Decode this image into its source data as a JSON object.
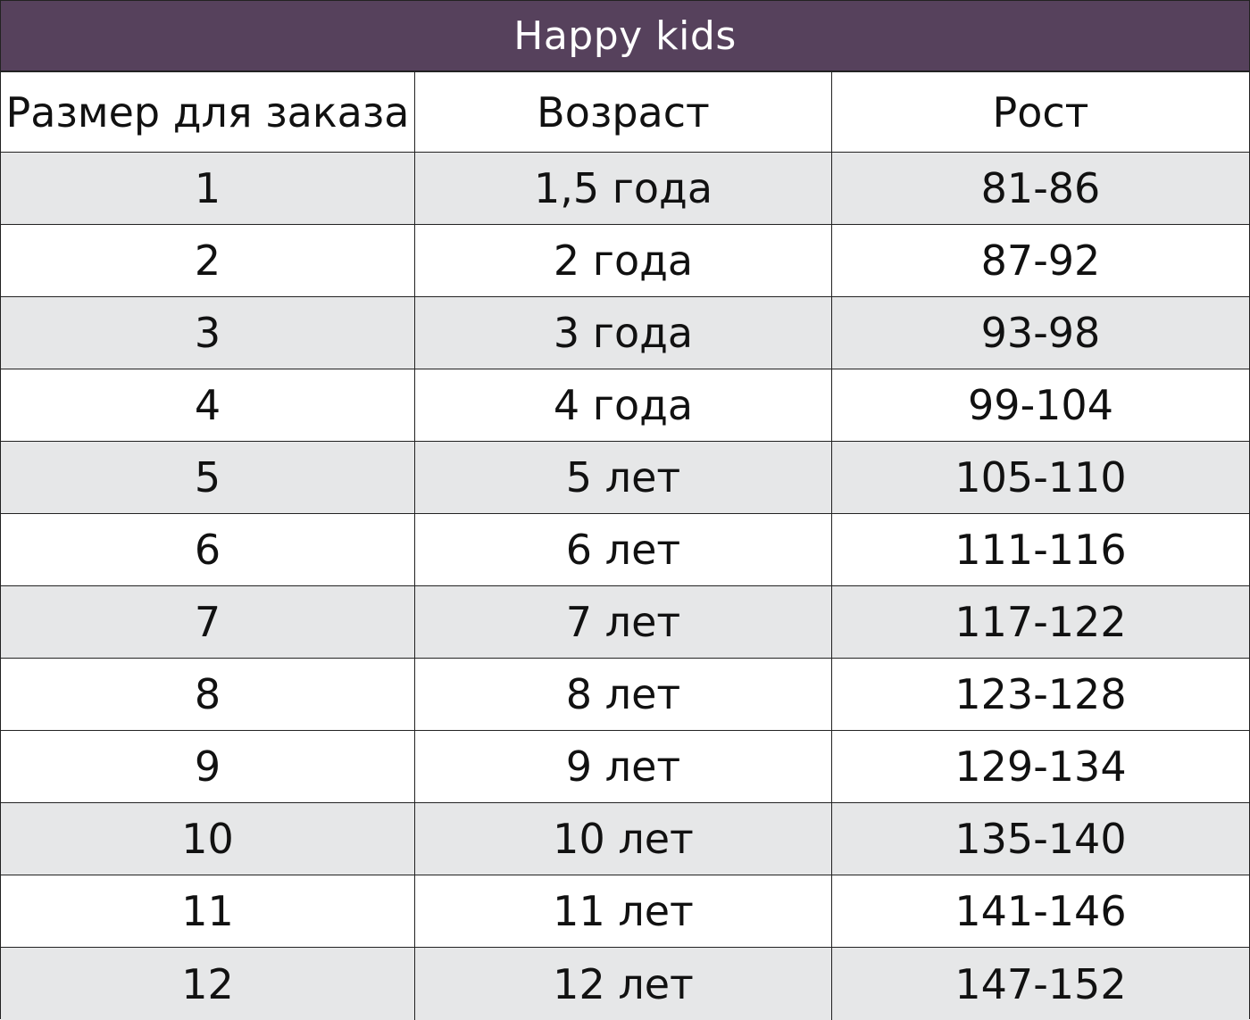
{
  "title": "Happy kids",
  "colors": {
    "title_bg": "#56415c",
    "title_text": "#ffffff",
    "shaded_row": "#e6e7e8",
    "border": "#222222"
  },
  "headers": [
    "Размер для заказа",
    "Возраст",
    "Рост"
  ],
  "rows": [
    [
      "1",
      "1,5 года",
      "81-86"
    ],
    [
      "2",
      "2 года",
      "87-92"
    ],
    [
      "3",
      "3 года",
      "93-98"
    ],
    [
      "4",
      "4 года",
      "99-104"
    ],
    [
      "5",
      "5 лет",
      "105-110"
    ],
    [
      "6",
      "6 лет",
      "111-116"
    ],
    [
      "7",
      "7 лет",
      "117-122"
    ],
    [
      "8",
      "8 лет",
      "123-128"
    ],
    [
      "9",
      "9 лет",
      "129-134"
    ],
    [
      "10",
      "10 лет",
      "135-140"
    ],
    [
      "11",
      "11 лет",
      "141-146"
    ],
    [
      "12",
      "12 лет",
      "147-152"
    ]
  ]
}
